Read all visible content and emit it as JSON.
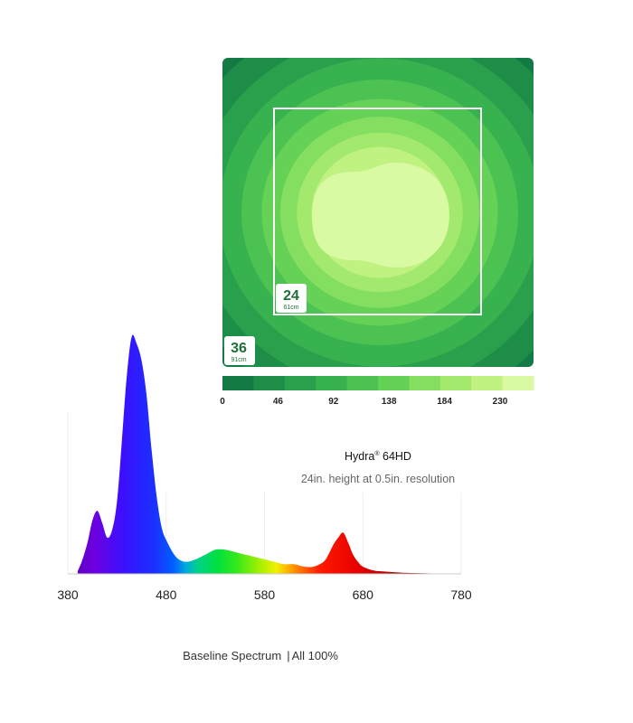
{
  "heatmap": {
    "outer_tile": {
      "value": "36",
      "unit": "91cm"
    },
    "inner_tile": {
      "value": "24",
      "unit": "61cm"
    },
    "colors": [
      "#137a45",
      "#1e8d48",
      "#2aa04d",
      "#38b24f",
      "#4bc252",
      "#65d156",
      "#84de5f",
      "#a3e96e",
      "#bff281",
      "#d9f9a3"
    ],
    "scale": {
      "min": 0,
      "max": 230,
      "ticks": [
        "0",
        "46",
        "92",
        "138",
        "184",
        "230"
      ]
    }
  },
  "product": {
    "name": "Hydra",
    "reg": "®",
    "model": " 64HD",
    "caption": "24in. height at 0.5in. resolution"
  },
  "chart_data": {
    "type": "area",
    "title": "",
    "xlabel": "",
    "ylabel": "",
    "xlim": [
      380,
      780
    ],
    "ylim": [
      0,
      100
    ],
    "x_ticks": [
      "380",
      "480",
      "580",
      "680",
      "780"
    ],
    "series": [
      {
        "x": [
          390,
          395,
          400,
          405,
          410,
          415,
          420,
          425,
          430,
          435,
          440,
          445,
          450,
          455,
          460,
          465,
          470,
          475,
          480,
          490,
          500,
          510,
          520,
          530,
          540,
          550,
          560,
          570,
          580,
          590,
          600,
          610,
          620,
          630,
          640,
          645,
          650,
          655,
          660,
          665,
          670,
          675,
          680,
          690,
          700,
          720,
          740,
          760,
          780
        ],
        "y": [
          1,
          6,
          13,
          22,
          26,
          21,
          15,
          18,
          30,
          55,
          82,
          98,
          95,
          88,
          74,
          52,
          33,
          20,
          14,
          7,
          5,
          6,
          8,
          10,
          10,
          9,
          8,
          7,
          6,
          5,
          4,
          4,
          3,
          3,
          5,
          8,
          12,
          15,
          17,
          13,
          8,
          5,
          3,
          1.5,
          1,
          0.5,
          0.3,
          0.1,
          0
        ]
      }
    ]
  },
  "footer": {
    "spectrum_label": "Baseline Spectrum",
    "separator": "|",
    "all_label": "All 100%"
  }
}
